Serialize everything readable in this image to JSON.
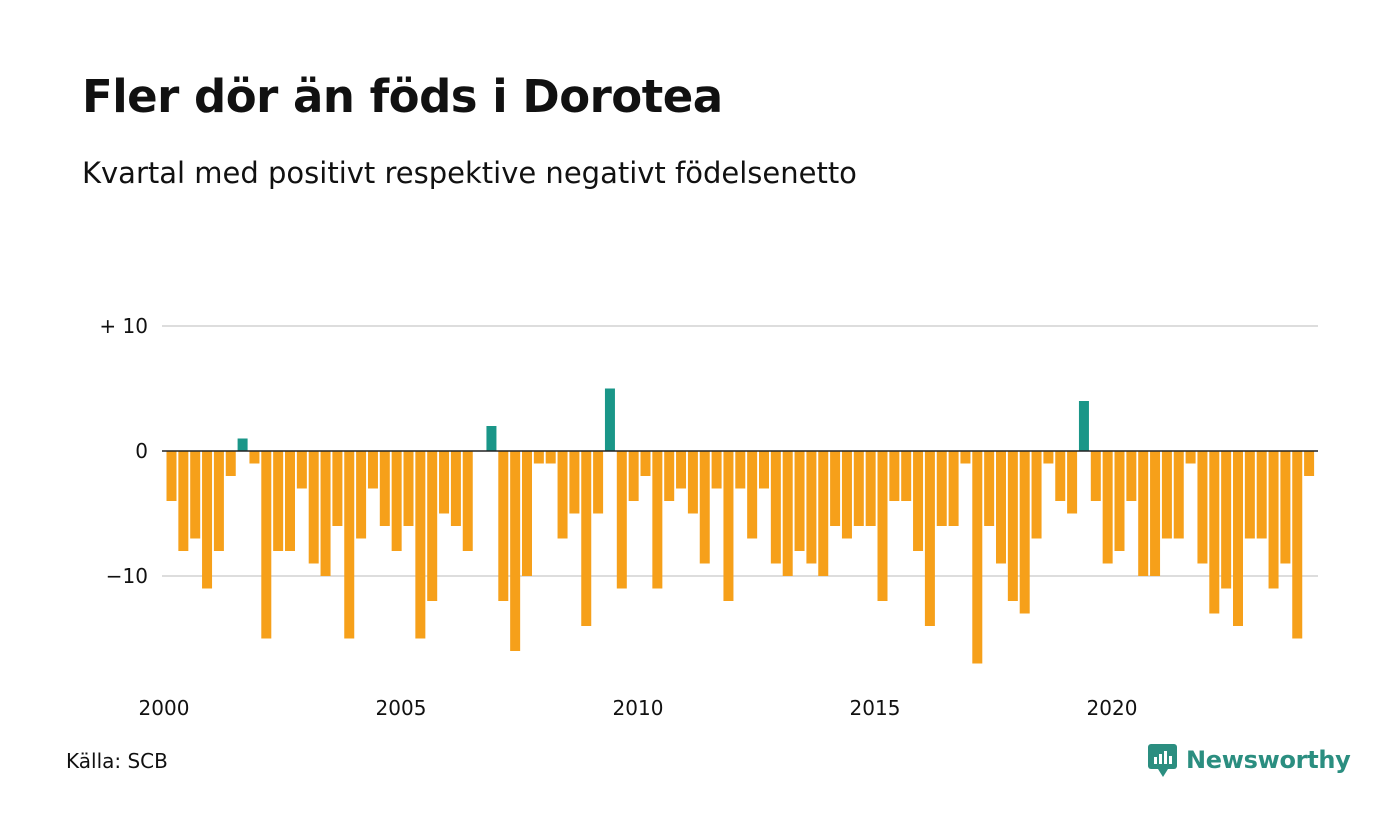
{
  "title": "Fler dör än föds i Dorotea",
  "subtitle": "Kvartal med positivt respektive negativt födelsenetto",
  "source": "Källa: SCB",
  "brand": {
    "name": "Newsworthy",
    "icon": "newsworthy-logo-icon"
  },
  "colors": {
    "positive": "#1a9688",
    "negative": "#f6a01a",
    "grid": "#dddddd",
    "zero_line": "#222222"
  },
  "chart_data": {
    "type": "bar",
    "x_start_year": 2000,
    "periods_per_year": 4,
    "values": [
      -4,
      -8,
      -7,
      -11,
      -8,
      -2,
      1,
      -1,
      -15,
      -8,
      -8,
      -3,
      -9,
      -10,
      -6,
      -15,
      -7,
      -3,
      -6,
      -8,
      -6,
      -15,
      -12,
      -5,
      -6,
      -8,
      0,
      2,
      -12,
      -16,
      -10,
      -1,
      -1,
      -7,
      -5,
      -14,
      -5,
      5,
      -11,
      -4,
      -2,
      -11,
      -4,
      -3,
      -5,
      -9,
      -3,
      -12,
      -3,
      -7,
      -3,
      -9,
      -10,
      -8,
      -9,
      -10,
      -6,
      -7,
      -6,
      -6,
      -12,
      -4,
      -4,
      -8,
      -14,
      -6,
      -6,
      -1,
      -17,
      -6,
      -9,
      -12,
      -13,
      -7,
      -1,
      -4,
      -5,
      4,
      -4,
      -9,
      -8,
      -4,
      -10,
      -10,
      -7,
      -7,
      -1,
      -9,
      -13,
      -11,
      -14,
      -7,
      -7,
      -11,
      -9,
      -15,
      -2
    ],
    "y_ticks": [
      {
        "value": 10,
        "label": "+ 10"
      },
      {
        "value": 0,
        "label": "0"
      },
      {
        "value": -10,
        "label": "−10"
      }
    ],
    "x_ticks": [
      {
        "year": 2000,
        "label": "2000"
      },
      {
        "year": 2005,
        "label": "2005"
      },
      {
        "year": 2010,
        "label": "2010"
      },
      {
        "year": 2015,
        "label": "2015"
      },
      {
        "year": 2020,
        "label": "2020"
      }
    ],
    "ylim": [
      -18,
      10
    ],
    "grid": true,
    "legend": "none"
  }
}
